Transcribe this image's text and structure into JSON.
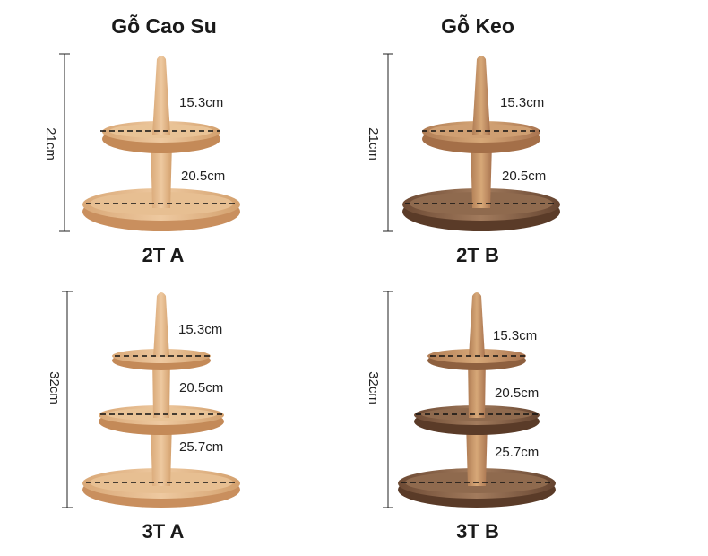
{
  "columns": {
    "left": "Gỗ Cao Su",
    "right": "Gỗ Keo"
  },
  "products": [
    {
      "code": "2T A",
      "height": "21cm",
      "tiers": [
        "15.3cm",
        "20.5cm"
      ]
    },
    {
      "code": "2T B",
      "height": "21cm",
      "tiers": [
        "15.3cm",
        "20.5cm"
      ]
    },
    {
      "code": "3T A",
      "height": "32cm",
      "tiers": [
        "15.3cm",
        "20.5cm",
        "25.7cm"
      ]
    },
    {
      "code": "3T B",
      "height": "32cm",
      "tiers": [
        "15.3cm",
        "20.5cm",
        "25.7cm"
      ]
    }
  ],
  "colors": {
    "rubber_wood": "#e2b88a",
    "acacia_wood": "#8a6448",
    "dimension_line": "#111111"
  }
}
